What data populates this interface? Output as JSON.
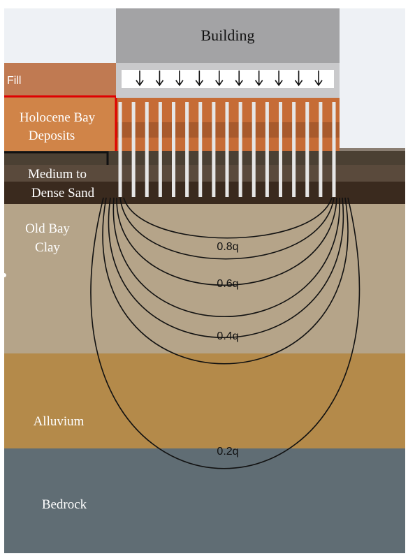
{
  "building": {
    "label": "Building"
  },
  "load": {
    "arrow_count": 10
  },
  "piles": {
    "count": 17
  },
  "layers": [
    {
      "name": "Fill",
      "color": "#c07a52"
    },
    {
      "name": "Holocene Bay",
      "name2": "Deposits",
      "color": "#d08448"
    },
    {
      "name": "Medium to",
      "name2": "Dense Sand",
      "color": "#4a3a2c"
    },
    {
      "name": "Old Bay",
      "name2": "Clay",
      "color": "#b5a489"
    },
    {
      "name": "Alluvium",
      "color": "#b48a4a"
    },
    {
      "name": "Bedrock",
      "color": "#606d74"
    }
  ],
  "stress_bulbs": [
    {
      "label": "0.8q",
      "value": 0.8
    },
    {
      "label": "0.6q",
      "value": 0.6
    },
    {
      "label": "0.4q",
      "value": 0.4
    },
    {
      "label": "0.2q",
      "value": 0.2
    }
  ],
  "colors": {
    "highlight": "#e00000",
    "contour": "#111111"
  }
}
